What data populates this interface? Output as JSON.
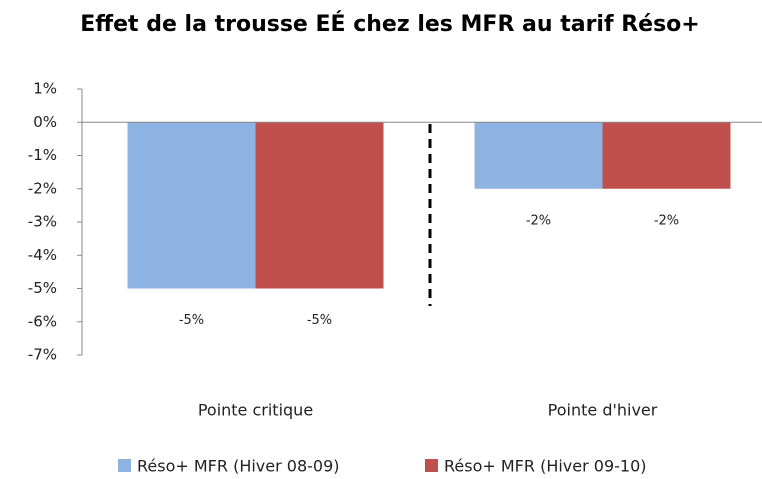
{
  "chart_data": {
    "type": "bar",
    "title": "Effet de la trousse EÉ chez les MFR au tarif Réso+",
    "categories": [
      "Pointe critique",
      "Pointe d'hiver"
    ],
    "series": [
      {
        "name": "Réso+ MFR (Hiver 08-09)",
        "color": "#8db3e2",
        "values": [
          -5,
          -2
        ],
        "value_labels": [
          "-5%",
          "-2%"
        ]
      },
      {
        "name": "Réso+ MFR (Hiver 09-10)",
        "color": "#c0504d",
        "values": [
          -5,
          -2
        ],
        "value_labels": [
          "-5%",
          "-2%"
        ]
      }
    ],
    "ylim": [
      -7,
      1
    ],
    "yticks": [
      {
        "value": 1,
        "label": "1%"
      },
      {
        "value": 0,
        "label": "0%"
      },
      {
        "value": -1,
        "label": "-1%"
      },
      {
        "value": -2,
        "label": "-2%"
      },
      {
        "value": -3,
        "label": "-3%"
      },
      {
        "value": -4,
        "label": "-4%"
      },
      {
        "value": -5,
        "label": "-5%"
      },
      {
        "value": -6,
        "label": "-6%"
      },
      {
        "value": -7,
        "label": "-7%"
      }
    ],
    "legend": "bottom"
  }
}
